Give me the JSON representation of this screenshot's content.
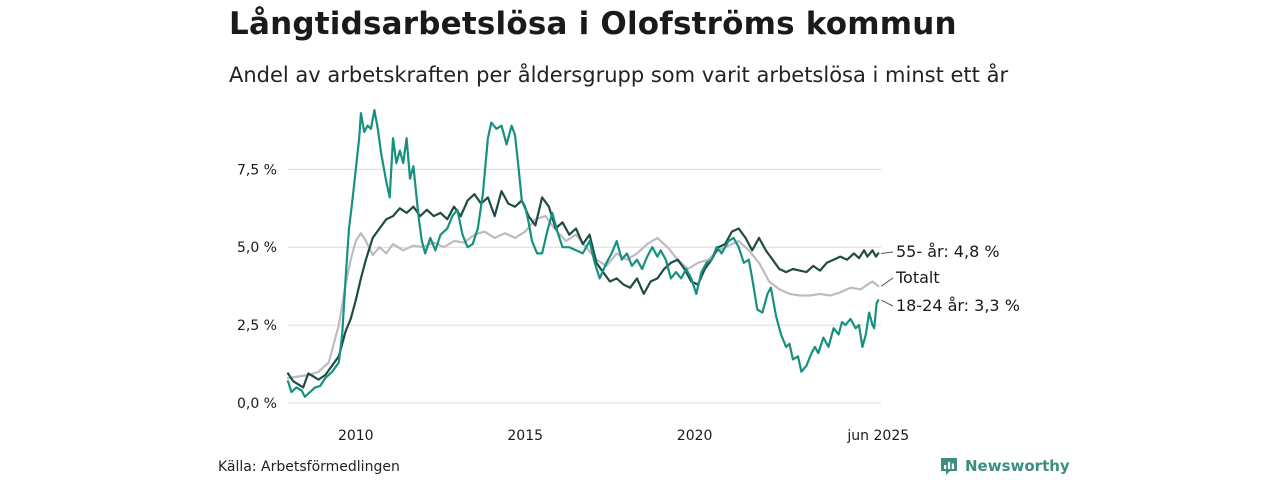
{
  "title": "Långtidsarbetslösa i Olofströms kommun",
  "subtitle": "Andel av arbetskraften per åldersgrupp som varit arbetslösa i minst ett år",
  "source": "Källa: Arbetsförmedlingen",
  "brand": {
    "name": "Newsworthy",
    "icon": "newsworthy-logo-icon"
  },
  "colors": {
    "series_55": "#1f4d44",
    "series_total": "#bdbac6",
    "series_18_24": "#17917f",
    "grid": "#dcdcdc",
    "text": "#1a1a1a",
    "brand": "#3c8f7c"
  },
  "chart_data": {
    "type": "line",
    "title": "Långtidsarbetslösa i Olofströms kommun",
    "subtitle": "Andel av arbetskraften per åldersgrupp som varit arbetslösa i minst ett år",
    "x_unit": "year",
    "xlim": [
      2008.0,
      2025.5
    ],
    "ylim": [
      0,
      9.5
    ],
    "y_ticks": [
      {
        "value": 0,
        "label": "0,0 %"
      },
      {
        "value": 2.5,
        "label": "2,5 %"
      },
      {
        "value": 5,
        "label": "5,0 %"
      },
      {
        "value": 7.5,
        "label": "7,5 %"
      }
    ],
    "x_ticks": [
      {
        "value": 2010,
        "label": "2010"
      },
      {
        "value": 2015,
        "label": "2015"
      },
      {
        "value": 2020,
        "label": "2020"
      },
      {
        "value": 2025.42,
        "label": "jun 2025"
      }
    ],
    "grid": true,
    "legend": "end-of-line labels",
    "series": [
      {
        "name": "Totalt",
        "color": "#bdbac6",
        "end_label": "Totalt",
        "points": [
          [
            2008.0,
            0.8
          ],
          [
            2008.3,
            0.85
          ],
          [
            2008.6,
            0.9
          ],
          [
            2008.9,
            1.0
          ],
          [
            2009.2,
            1.3
          ],
          [
            2009.5,
            2.5
          ],
          [
            2009.7,
            3.8
          ],
          [
            2009.85,
            4.6
          ],
          [
            2010.0,
            5.2
          ],
          [
            2010.15,
            5.45
          ],
          [
            2010.3,
            5.2
          ],
          [
            2010.5,
            4.75
          ],
          [
            2010.7,
            5.0
          ],
          [
            2010.9,
            4.8
          ],
          [
            2011.1,
            5.1
          ],
          [
            2011.4,
            4.9
          ],
          [
            2011.7,
            5.05
          ],
          [
            2012.0,
            5.0
          ],
          [
            2012.3,
            5.15
          ],
          [
            2012.6,
            5.0
          ],
          [
            2012.9,
            5.2
          ],
          [
            2013.2,
            5.15
          ],
          [
            2013.5,
            5.4
          ],
          [
            2013.8,
            5.5
          ],
          [
            2014.1,
            5.3
          ],
          [
            2014.4,
            5.45
          ],
          [
            2014.7,
            5.3
          ],
          [
            2015.0,
            5.5
          ],
          [
            2015.3,
            5.9
          ],
          [
            2015.6,
            6.0
          ],
          [
            2015.9,
            5.55
          ],
          [
            2016.2,
            5.2
          ],
          [
            2016.5,
            5.4
          ],
          [
            2016.8,
            5.0
          ],
          [
            2017.1,
            4.6
          ],
          [
            2017.4,
            4.4
          ],
          [
            2017.7,
            4.8
          ],
          [
            2018.0,
            4.6
          ],
          [
            2018.3,
            4.8
          ],
          [
            2018.6,
            5.1
          ],
          [
            2018.9,
            5.3
          ],
          [
            2019.2,
            5.0
          ],
          [
            2019.5,
            4.6
          ],
          [
            2019.8,
            4.3
          ],
          [
            2020.1,
            4.5
          ],
          [
            2020.4,
            4.6
          ],
          [
            2020.7,
            4.9
          ],
          [
            2021.0,
            5.05
          ],
          [
            2021.3,
            5.2
          ],
          [
            2021.6,
            4.9
          ],
          [
            2021.9,
            4.5
          ],
          [
            2022.2,
            3.9
          ],
          [
            2022.5,
            3.65
          ],
          [
            2022.8,
            3.5
          ],
          [
            2023.1,
            3.45
          ],
          [
            2023.4,
            3.45
          ],
          [
            2023.7,
            3.5
          ],
          [
            2024.0,
            3.45
          ],
          [
            2024.3,
            3.55
          ],
          [
            2024.6,
            3.7
          ],
          [
            2024.9,
            3.65
          ],
          [
            2025.1,
            3.8
          ],
          [
            2025.25,
            3.9
          ],
          [
            2025.42,
            3.75
          ]
        ]
      },
      {
        "name": "55- år",
        "color": "#1f4d44",
        "end_label": "55- år: 4,8 %",
        "points": [
          [
            2008.0,
            0.95
          ],
          [
            2008.15,
            0.7
          ],
          [
            2008.3,
            0.6
          ],
          [
            2008.45,
            0.5
          ],
          [
            2008.6,
            0.95
          ],
          [
            2008.75,
            0.85
          ],
          [
            2008.9,
            0.75
          ],
          [
            2009.1,
            0.9
          ],
          [
            2009.3,
            1.2
          ],
          [
            2009.5,
            1.5
          ],
          [
            2009.7,
            2.3
          ],
          [
            2009.85,
            2.7
          ],
          [
            2010.0,
            3.3
          ],
          [
            2010.15,
            4.0
          ],
          [
            2010.3,
            4.6
          ],
          [
            2010.5,
            5.3
          ],
          [
            2010.7,
            5.6
          ],
          [
            2010.9,
            5.9
          ],
          [
            2011.1,
            6.0
          ],
          [
            2011.3,
            6.25
          ],
          [
            2011.5,
            6.1
          ],
          [
            2011.7,
            6.3
          ],
          [
            2011.9,
            6.0
          ],
          [
            2012.1,
            6.2
          ],
          [
            2012.3,
            6.0
          ],
          [
            2012.5,
            6.1
          ],
          [
            2012.7,
            5.9
          ],
          [
            2012.9,
            6.3
          ],
          [
            2013.1,
            6.0
          ],
          [
            2013.3,
            6.5
          ],
          [
            2013.5,
            6.7
          ],
          [
            2013.7,
            6.4
          ],
          [
            2013.9,
            6.6
          ],
          [
            2014.1,
            6.0
          ],
          [
            2014.3,
            6.8
          ],
          [
            2014.5,
            6.4
          ],
          [
            2014.7,
            6.3
          ],
          [
            2014.9,
            6.5
          ],
          [
            2015.1,
            6.0
          ],
          [
            2015.3,
            5.7
          ],
          [
            2015.5,
            6.6
          ],
          [
            2015.7,
            6.3
          ],
          [
            2015.9,
            5.6
          ],
          [
            2016.1,
            5.8
          ],
          [
            2016.3,
            5.4
          ],
          [
            2016.5,
            5.6
          ],
          [
            2016.7,
            5.1
          ],
          [
            2016.9,
            5.4
          ],
          [
            2017.1,
            4.5
          ],
          [
            2017.3,
            4.2
          ],
          [
            2017.5,
            3.9
          ],
          [
            2017.7,
            4.0
          ],
          [
            2017.9,
            3.8
          ],
          [
            2018.1,
            3.7
          ],
          [
            2018.3,
            4.0
          ],
          [
            2018.5,
            3.5
          ],
          [
            2018.7,
            3.9
          ],
          [
            2018.9,
            4.0
          ],
          [
            2019.1,
            4.3
          ],
          [
            2019.3,
            4.5
          ],
          [
            2019.5,
            4.6
          ],
          [
            2019.7,
            4.3
          ],
          [
            2019.9,
            3.9
          ],
          [
            2020.1,
            3.8
          ],
          [
            2020.3,
            4.3
          ],
          [
            2020.5,
            4.6
          ],
          [
            2020.7,
            5.0
          ],
          [
            2020.9,
            5.1
          ],
          [
            2021.1,
            5.5
          ],
          [
            2021.3,
            5.6
          ],
          [
            2021.5,
            5.3
          ],
          [
            2021.7,
            4.9
          ],
          [
            2021.9,
            5.3
          ],
          [
            2022.1,
            4.9
          ],
          [
            2022.3,
            4.6
          ],
          [
            2022.5,
            4.3
          ],
          [
            2022.7,
            4.2
          ],
          [
            2022.9,
            4.3
          ],
          [
            2023.1,
            4.25
          ],
          [
            2023.3,
            4.2
          ],
          [
            2023.5,
            4.4
          ],
          [
            2023.7,
            4.25
          ],
          [
            2023.9,
            4.5
          ],
          [
            2024.1,
            4.6
          ],
          [
            2024.3,
            4.7
          ],
          [
            2024.5,
            4.6
          ],
          [
            2024.7,
            4.8
          ],
          [
            2024.85,
            4.65
          ],
          [
            2025.0,
            4.9
          ],
          [
            2025.1,
            4.7
          ],
          [
            2025.25,
            4.9
          ],
          [
            2025.35,
            4.7
          ],
          [
            2025.42,
            4.8
          ]
        ]
      },
      {
        "name": "18-24 år",
        "color": "#17917f",
        "end_label": "18-24 år: 3,3 %",
        "points": [
          [
            2008.0,
            0.7
          ],
          [
            2008.1,
            0.35
          ],
          [
            2008.25,
            0.5
          ],
          [
            2008.4,
            0.4
          ],
          [
            2008.5,
            0.2
          ],
          [
            2008.65,
            0.35
          ],
          [
            2008.8,
            0.5
          ],
          [
            2008.95,
            0.55
          ],
          [
            2009.1,
            0.8
          ],
          [
            2009.3,
            1.0
          ],
          [
            2009.5,
            1.3
          ],
          [
            2009.6,
            2.2
          ],
          [
            2009.7,
            4.0
          ],
          [
            2009.8,
            5.6
          ],
          [
            2009.9,
            6.5
          ],
          [
            2010.0,
            7.5
          ],
          [
            2010.1,
            8.5
          ],
          [
            2010.15,
            9.3
          ],
          [
            2010.25,
            8.7
          ],
          [
            2010.35,
            8.9
          ],
          [
            2010.45,
            8.8
          ],
          [
            2010.55,
            9.4
          ],
          [
            2010.65,
            8.8
          ],
          [
            2010.75,
            8.0
          ],
          [
            2010.9,
            7.1
          ],
          [
            2011.0,
            6.6
          ],
          [
            2011.1,
            8.5
          ],
          [
            2011.2,
            7.7
          ],
          [
            2011.3,
            8.1
          ],
          [
            2011.4,
            7.7
          ],
          [
            2011.5,
            8.5
          ],
          [
            2011.6,
            7.2
          ],
          [
            2011.7,
            7.6
          ],
          [
            2011.85,
            6.0
          ],
          [
            2011.95,
            5.2
          ],
          [
            2012.05,
            4.8
          ],
          [
            2012.2,
            5.3
          ],
          [
            2012.35,
            4.9
          ],
          [
            2012.5,
            5.4
          ],
          [
            2012.7,
            5.6
          ],
          [
            2012.85,
            6.0
          ],
          [
            2013.0,
            6.2
          ],
          [
            2013.15,
            5.4
          ],
          [
            2013.3,
            5.0
          ],
          [
            2013.45,
            5.1
          ],
          [
            2013.6,
            5.6
          ],
          [
            2013.75,
            6.7
          ],
          [
            2013.9,
            8.5
          ],
          [
            2014.0,
            9.0
          ],
          [
            2014.15,
            8.8
          ],
          [
            2014.3,
            8.9
          ],
          [
            2014.45,
            8.3
          ],
          [
            2014.6,
            8.9
          ],
          [
            2014.7,
            8.6
          ],
          [
            2014.8,
            7.6
          ],
          [
            2014.9,
            6.5
          ],
          [
            2015.0,
            6.3
          ],
          [
            2015.1,
            5.8
          ],
          [
            2015.2,
            5.2
          ],
          [
            2015.35,
            4.8
          ],
          [
            2015.5,
            4.8
          ],
          [
            2015.65,
            5.5
          ],
          [
            2015.8,
            6.1
          ],
          [
            2015.95,
            5.5
          ],
          [
            2016.1,
            5.0
          ],
          [
            2016.3,
            5.0
          ],
          [
            2016.5,
            4.9
          ],
          [
            2016.7,
            4.8
          ],
          [
            2016.9,
            5.2
          ],
          [
            2017.05,
            4.5
          ],
          [
            2017.2,
            4.0
          ],
          [
            2017.4,
            4.5
          ],
          [
            2017.55,
            4.8
          ],
          [
            2017.7,
            5.2
          ],
          [
            2017.85,
            4.6
          ],
          [
            2018.0,
            4.8
          ],
          [
            2018.15,
            4.4
          ],
          [
            2018.3,
            4.6
          ],
          [
            2018.45,
            4.3
          ],
          [
            2018.6,
            4.7
          ],
          [
            2018.75,
            5.0
          ],
          [
            2018.9,
            4.7
          ],
          [
            2019.0,
            4.9
          ],
          [
            2019.15,
            4.6
          ],
          [
            2019.3,
            4.0
          ],
          [
            2019.45,
            4.2
          ],
          [
            2019.6,
            4.0
          ],
          [
            2019.75,
            4.3
          ],
          [
            2019.9,
            4.0
          ],
          [
            2020.05,
            3.5
          ],
          [
            2020.2,
            4.2
          ],
          [
            2020.35,
            4.5
          ],
          [
            2020.5,
            4.6
          ],
          [
            2020.65,
            5.0
          ],
          [
            2020.8,
            4.8
          ],
          [
            2021.0,
            5.2
          ],
          [
            2021.15,
            5.3
          ],
          [
            2021.3,
            5.0
          ],
          [
            2021.45,
            4.5
          ],
          [
            2021.6,
            4.6
          ],
          [
            2021.7,
            4.0
          ],
          [
            2021.85,
            3.0
          ],
          [
            2022.0,
            2.9
          ],
          [
            2022.15,
            3.5
          ],
          [
            2022.25,
            3.7
          ],
          [
            2022.4,
            2.8
          ],
          [
            2022.55,
            2.2
          ],
          [
            2022.7,
            1.8
          ],
          [
            2022.8,
            1.9
          ],
          [
            2022.9,
            1.4
          ],
          [
            2023.05,
            1.5
          ],
          [
            2023.15,
            1.0
          ],
          [
            2023.3,
            1.2
          ],
          [
            2023.45,
            1.6
          ],
          [
            2023.55,
            1.8
          ],
          [
            2023.65,
            1.6
          ],
          [
            2023.8,
            2.1
          ],
          [
            2023.95,
            1.8
          ],
          [
            2024.1,
            2.4
          ],
          [
            2024.25,
            2.2
          ],
          [
            2024.35,
            2.6
          ],
          [
            2024.45,
            2.5
          ],
          [
            2024.6,
            2.7
          ],
          [
            2024.75,
            2.4
          ],
          [
            2024.85,
            2.5
          ],
          [
            2024.95,
            1.8
          ],
          [
            2025.05,
            2.2
          ],
          [
            2025.15,
            2.9
          ],
          [
            2025.25,
            2.5
          ],
          [
            2025.3,
            2.4
          ],
          [
            2025.37,
            3.2
          ],
          [
            2025.42,
            3.3
          ]
        ]
      }
    ]
  }
}
